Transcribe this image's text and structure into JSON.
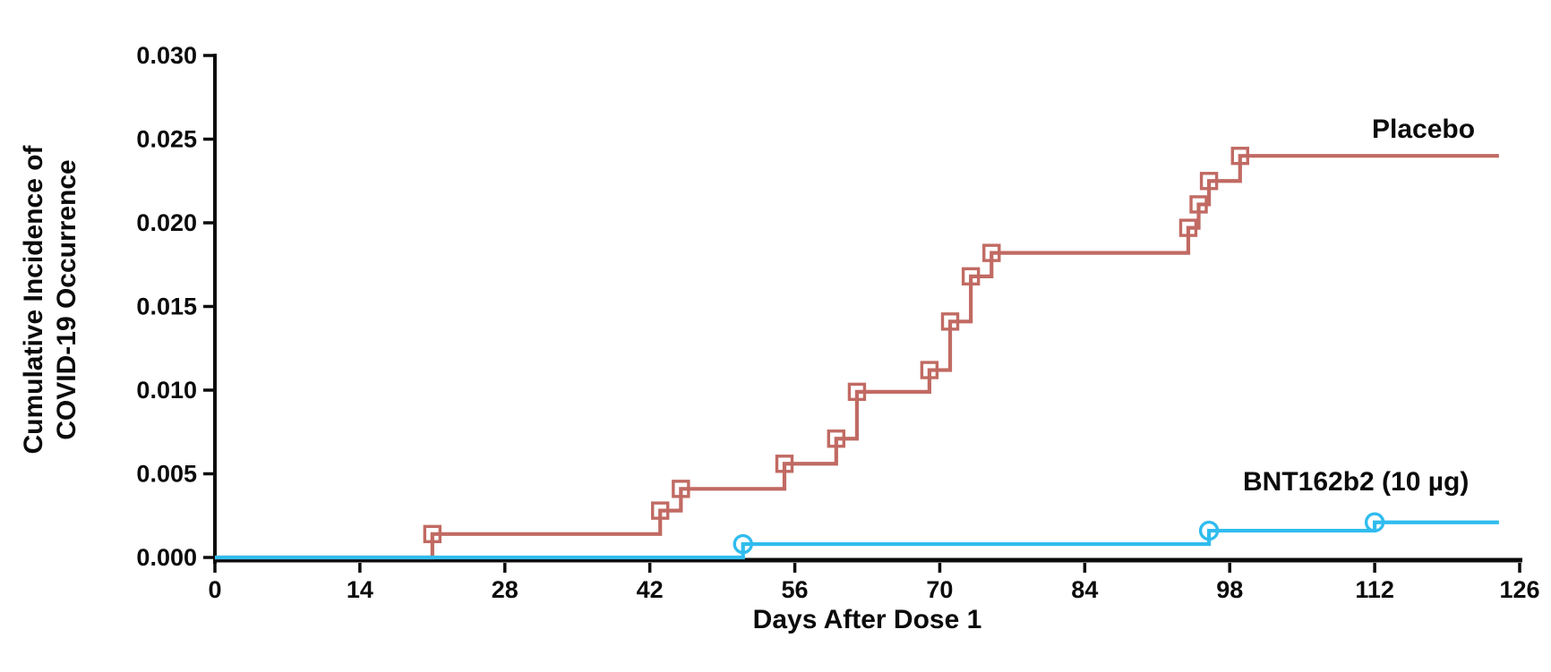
{
  "chart_data": {
    "type": "line",
    "subtype": "kaplan-meier-step",
    "title": "",
    "xlabel": "Days After Dose 1",
    "ylabel_lines": [
      "Cumulative Incidence of",
      "COVID-19 Occurrence"
    ],
    "xlim": [
      0,
      126
    ],
    "ylim": [
      0,
      0.03
    ],
    "x_ticks": [
      0,
      14,
      28,
      42,
      56,
      70,
      84,
      98,
      112,
      126
    ],
    "y_ticks": [
      "0.000",
      "0.005",
      "0.010",
      "0.015",
      "0.020",
      "0.025",
      "0.030"
    ],
    "grid": false,
    "legend_position": "inline-end-of-line",
    "series": [
      {
        "name": "Placebo",
        "color": "#C16A63",
        "marker": "square",
        "end_day": 124,
        "steps": [
          [
            0,
            0.0
          ],
          [
            21,
            0.0014
          ],
          [
            43,
            0.0028
          ],
          [
            45,
            0.0041
          ],
          [
            55,
            0.0056
          ],
          [
            60,
            0.0071
          ],
          [
            62,
            0.0099
          ],
          [
            69,
            0.0112
          ],
          [
            71,
            0.0141
          ],
          [
            73,
            0.0168
          ],
          [
            75,
            0.0182
          ],
          [
            94,
            0.0197
          ],
          [
            95,
            0.0211
          ],
          [
            96,
            0.0225
          ],
          [
            99,
            0.024
          ]
        ]
      },
      {
        "name": "BNT162b2 (10 µg)",
        "color": "#30BCEE",
        "marker": "circle",
        "end_day": 124,
        "steps": [
          [
            0,
            0.0
          ],
          [
            51,
            0.0008
          ],
          [
            96,
            0.0016
          ],
          [
            112,
            0.0021
          ]
        ]
      }
    ],
    "axis_color": "#0b0b0b",
    "background_color": "#ffffff"
  }
}
